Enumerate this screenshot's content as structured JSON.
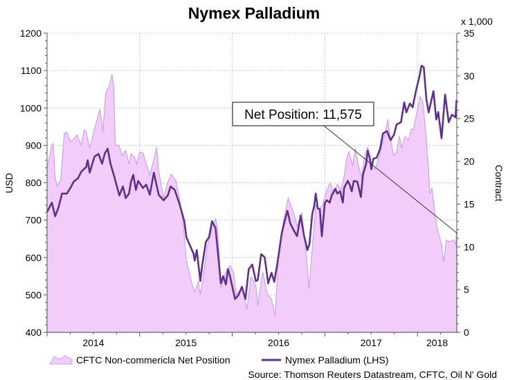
{
  "chart_data": {
    "type": "area+line",
    "title": "Nymex Palladium",
    "ylabel_left": "USD",
    "ylabel_right": "Contract",
    "right_axis_unit": "x 1,000",
    "ylim_left": [
      400,
      1200
    ],
    "ylim_right": [
      0,
      35
    ],
    "left_ticks": [
      "400",
      "500",
      "600",
      "700",
      "800",
      "900",
      "1000",
      "1100",
      "1200"
    ],
    "right_ticks": [
      "0",
      "5",
      "10",
      "15",
      "20",
      "25",
      "30",
      "35"
    ],
    "x_tick_labels": [
      "2014",
      "2015",
      "2016",
      "2017",
      "2018"
    ],
    "xlim": [
      "2014-01-01",
      "2018-06-05"
    ],
    "grid": true,
    "legend_position": "bottom",
    "annotation": "Net Position: 11,575",
    "source": "Source: Thomson Reuters Datastream, CFTC, Oil N' Gold",
    "colors": {
      "area_fill": "#f2cdf9",
      "area_edge": "#c9a2f2",
      "line": "#5e2f8f"
    },
    "series": [
      {
        "name": "CFTC Non-commericla Net Position",
        "type": "area",
        "axis": "right",
        "points": [
          [
            "2014-01-01",
            19.2
          ],
          [
            "2014-01-20",
            21.9
          ],
          [
            "2014-01-25",
            22.1
          ],
          [
            "2014-02-02",
            18.1
          ],
          [
            "2014-02-10",
            17.1
          ],
          [
            "2014-02-24",
            17.9
          ],
          [
            "2014-03-10",
            23.3
          ],
          [
            "2014-03-20",
            23.4
          ],
          [
            "2014-04-03",
            22.3
          ],
          [
            "2014-04-16",
            22.6
          ],
          [
            "2014-04-30",
            23.1
          ],
          [
            "2014-05-14",
            21.9
          ],
          [
            "2014-05-28",
            23.7
          ],
          [
            "2014-06-04",
            23.5
          ],
          [
            "2014-06-18",
            21.5
          ],
          [
            "2014-07-07",
            23.8
          ],
          [
            "2014-07-29",
            26.1
          ],
          [
            "2014-08-09",
            23.5
          ],
          [
            "2014-08-20",
            28.0
          ],
          [
            "2014-09-03",
            28.8
          ],
          [
            "2014-09-14",
            30.2
          ],
          [
            "2014-09-21",
            28.6
          ],
          [
            "2014-09-27",
            21.9
          ],
          [
            "2014-10-11",
            21.9
          ],
          [
            "2014-10-25",
            20.7
          ],
          [
            "2014-11-07",
            21.3
          ],
          [
            "2014-11-20",
            19.7
          ],
          [
            "2014-11-28",
            20.9
          ],
          [
            "2014-12-12",
            20.5
          ],
          [
            "2014-12-20",
            19.7
          ],
          [
            "2015-01-01",
            21.1
          ],
          [
            "2015-01-14",
            21.0
          ],
          [
            "2015-02-10",
            18.4
          ],
          [
            "2015-02-24",
            20.0
          ],
          [
            "2015-03-09",
            21.7
          ],
          [
            "2015-03-17",
            18.9
          ],
          [
            "2015-04-05",
            15.7
          ],
          [
            "2015-04-19",
            17.3
          ],
          [
            "2015-05-05",
            18.5
          ],
          [
            "2015-05-24",
            17.7
          ],
          [
            "2015-06-07",
            15.7
          ],
          [
            "2015-06-21",
            12.8
          ],
          [
            "2015-07-04",
            8.4
          ],
          [
            "2015-07-26",
            5.7
          ],
          [
            "2015-08-06",
            4.7
          ],
          [
            "2015-08-20",
            6.0
          ],
          [
            "2015-08-28",
            4.4
          ],
          [
            "2015-09-05",
            5.7
          ],
          [
            "2015-09-24",
            10.0
          ],
          [
            "2015-10-13",
            12.2
          ],
          [
            "2015-10-27",
            13.3
          ],
          [
            "2015-11-04",
            12.2
          ],
          [
            "2015-11-09",
            10.0
          ],
          [
            "2015-11-17",
            5.2
          ],
          [
            "2015-12-07",
            7.1
          ],
          [
            "2015-12-23",
            7.8
          ],
          [
            "2016-01-06",
            7.0
          ],
          [
            "2016-01-17",
            4.4
          ],
          [
            "2016-02-08",
            5.2
          ],
          [
            "2016-02-28",
            2.7
          ],
          [
            "2016-03-15",
            6.5
          ],
          [
            "2016-04-03",
            5.5
          ],
          [
            "2016-04-11",
            3.1
          ],
          [
            "2016-04-30",
            7.1
          ],
          [
            "2016-05-19",
            4.4
          ],
          [
            "2016-06-04",
            3.9
          ],
          [
            "2016-06-18",
            1.9
          ],
          [
            "2016-07-02",
            9.0
          ],
          [
            "2016-07-21",
            13.0
          ],
          [
            "2016-08-09",
            15.7
          ],
          [
            "2016-08-23",
            14.6
          ],
          [
            "2016-09-06",
            13.3
          ],
          [
            "2016-09-13",
            12.4
          ],
          [
            "2016-10-02",
            14.0
          ],
          [
            "2016-10-16",
            10.3
          ],
          [
            "2016-10-30",
            5.1
          ],
          [
            "2016-11-12",
            9.8
          ],
          [
            "2016-11-26",
            14.9
          ],
          [
            "2016-12-10",
            14.4
          ],
          [
            "2016-12-23",
            14.9
          ],
          [
            "2017-01-06",
            16.4
          ],
          [
            "2017-01-22",
            17.5
          ],
          [
            "2017-02-05",
            16.2
          ],
          [
            "2017-02-19",
            17.3
          ],
          [
            "2017-03-05",
            16.7
          ],
          [
            "2017-03-16",
            17.9
          ],
          [
            "2017-03-29",
            20.5
          ],
          [
            "2017-04-06",
            21.1
          ],
          [
            "2017-04-20",
            19.5
          ],
          [
            "2017-05-01",
            21.5
          ],
          [
            "2017-05-12",
            19.7
          ],
          [
            "2017-05-26",
            18.1
          ],
          [
            "2017-06-06",
            20.5
          ],
          [
            "2017-06-19",
            21.7
          ],
          [
            "2017-07-03",
            19.5
          ],
          [
            "2017-07-19",
            19.1
          ],
          [
            "2017-08-07",
            21.1
          ],
          [
            "2017-08-24",
            23.0
          ],
          [
            "2017-09-06",
            24.9
          ],
          [
            "2017-09-14",
            23.3
          ],
          [
            "2017-09-28",
            20.7
          ],
          [
            "2017-10-11",
            21.1
          ],
          [
            "2017-10-22",
            23.0
          ],
          [
            "2017-10-30",
            21.5
          ],
          [
            "2017-11-13",
            22.9
          ],
          [
            "2017-11-27",
            22.5
          ],
          [
            "2017-12-08",
            23.8
          ],
          [
            "2017-12-16",
            23.7
          ],
          [
            "2017-12-30",
            25.7
          ],
          [
            "2018-01-11",
            27.6
          ],
          [
            "2018-01-22",
            27.0
          ],
          [
            "2018-02-05",
            22.7
          ],
          [
            "2018-02-14",
            18.9
          ],
          [
            "2018-02-19",
            16.2
          ],
          [
            "2018-02-27",
            16.9
          ],
          [
            "2018-03-10",
            14.1
          ],
          [
            "2018-03-18",
            12.4
          ],
          [
            "2018-04-06",
            10.3
          ],
          [
            "2018-04-14",
            8.2
          ],
          [
            "2018-04-25",
            10.8
          ],
          [
            "2018-05-09",
            10.6
          ],
          [
            "2018-05-22",
            10.8
          ],
          [
            "2018-05-31",
            10.3
          ],
          [
            "2018-06-04",
            11.6
          ]
        ]
      },
      {
        "name": "Nymex Palladium (LHS)",
        "type": "line",
        "axis": "left",
        "points": [
          [
            "2014-01-01",
            722
          ],
          [
            "2014-01-20",
            747
          ],
          [
            "2014-02-02",
            710
          ],
          [
            "2014-02-15",
            734
          ],
          [
            "2014-03-01",
            771
          ],
          [
            "2014-03-20",
            771
          ],
          [
            "2014-04-03",
            786
          ],
          [
            "2014-04-16",
            803
          ],
          [
            "2014-05-03",
            812
          ],
          [
            "2014-05-16",
            830
          ],
          [
            "2014-06-04",
            842
          ],
          [
            "2014-06-10",
            860
          ],
          [
            "2014-06-18",
            827
          ],
          [
            "2014-07-07",
            870
          ],
          [
            "2014-07-23",
            877
          ],
          [
            "2014-08-06",
            851
          ],
          [
            "2014-08-17",
            879
          ],
          [
            "2014-08-28",
            891
          ],
          [
            "2014-09-08",
            851
          ],
          [
            "2014-09-21",
            821
          ],
          [
            "2014-10-05",
            786
          ],
          [
            "2014-10-13",
            766
          ],
          [
            "2014-10-27",
            790
          ],
          [
            "2014-11-07",
            759
          ],
          [
            "2014-11-20",
            771
          ],
          [
            "2014-11-28",
            803
          ],
          [
            "2014-12-07",
            821
          ],
          [
            "2014-12-17",
            781
          ],
          [
            "2014-12-26",
            805
          ],
          [
            "2015-01-14",
            786
          ],
          [
            "2015-01-27",
            795
          ],
          [
            "2015-02-10",
            768
          ],
          [
            "2015-02-26",
            827
          ],
          [
            "2015-03-17",
            768
          ],
          [
            "2015-04-05",
            753
          ],
          [
            "2015-04-22",
            766
          ],
          [
            "2015-05-03",
            790
          ],
          [
            "2015-05-19",
            781
          ],
          [
            "2015-06-07",
            744
          ],
          [
            "2015-06-26",
            697
          ],
          [
            "2015-07-04",
            655
          ],
          [
            "2015-08-01",
            611
          ],
          [
            "2015-08-06",
            592
          ],
          [
            "2015-08-14",
            620
          ],
          [
            "2015-08-28",
            537
          ],
          [
            "2015-09-05",
            581
          ],
          [
            "2015-09-19",
            642
          ],
          [
            "2015-10-02",
            655
          ],
          [
            "2015-10-13",
            697
          ],
          [
            "2015-10-27",
            679
          ],
          [
            "2015-11-09",
            587
          ],
          [
            "2015-11-17",
            531
          ],
          [
            "2015-11-26",
            550
          ],
          [
            "2015-12-07",
            528
          ],
          [
            "2015-12-15",
            569
          ],
          [
            "2015-12-23",
            550
          ],
          [
            "2016-01-12",
            489
          ],
          [
            "2016-01-26",
            500
          ],
          [
            "2016-02-08",
            522
          ],
          [
            "2016-02-22",
            489
          ],
          [
            "2016-03-06",
            569
          ],
          [
            "2016-03-20",
            581
          ],
          [
            "2016-04-03",
            537
          ],
          [
            "2016-04-11",
            540
          ],
          [
            "2016-04-24",
            609
          ],
          [
            "2016-05-08",
            601
          ],
          [
            "2016-05-22",
            531
          ],
          [
            "2016-06-04",
            559
          ],
          [
            "2016-06-15",
            535
          ],
          [
            "2016-06-29",
            592
          ],
          [
            "2016-07-15",
            666
          ],
          [
            "2016-07-26",
            697
          ],
          [
            "2016-08-06",
            725
          ],
          [
            "2016-08-17",
            692
          ],
          [
            "2016-08-30",
            674
          ],
          [
            "2016-09-13",
            657
          ],
          [
            "2016-09-27",
            712
          ],
          [
            "2016-10-10",
            661
          ],
          [
            "2016-10-24",
            620
          ],
          [
            "2016-11-01",
            636
          ],
          [
            "2016-11-12",
            716
          ],
          [
            "2016-11-20",
            738
          ],
          [
            "2016-11-26",
            771
          ],
          [
            "2016-12-04",
            731
          ],
          [
            "2016-12-12",
            729
          ],
          [
            "2016-12-20",
            657
          ],
          [
            "2017-01-01",
            747
          ],
          [
            "2017-01-09",
            753
          ],
          [
            "2017-01-20",
            747
          ],
          [
            "2017-01-28",
            766
          ],
          [
            "2017-02-11",
            784
          ],
          [
            "2017-02-19",
            771
          ],
          [
            "2017-03-02",
            777
          ],
          [
            "2017-03-13",
            747
          ],
          [
            "2017-03-18",
            786
          ],
          [
            "2017-04-01",
            805
          ],
          [
            "2017-04-09",
            795
          ],
          [
            "2017-04-17",
            777
          ],
          [
            "2017-04-25",
            805
          ],
          [
            "2017-05-09",
            803
          ],
          [
            "2017-05-23",
            762
          ],
          [
            "2017-05-31",
            821
          ],
          [
            "2017-06-13",
            851
          ],
          [
            "2017-06-19",
            886
          ],
          [
            "2017-06-27",
            867
          ],
          [
            "2017-07-03",
            836
          ],
          [
            "2017-07-11",
            864
          ],
          [
            "2017-07-24",
            867
          ],
          [
            "2017-08-07",
            891
          ],
          [
            "2017-08-18",
            932
          ],
          [
            "2017-09-03",
            938
          ],
          [
            "2017-09-17",
            914
          ],
          [
            "2017-09-30",
            928
          ],
          [
            "2017-10-11",
            956
          ],
          [
            "2017-10-28",
            962
          ],
          [
            "2017-11-10",
            1015
          ],
          [
            "2017-11-18",
            988
          ],
          [
            "2017-12-02",
            1012
          ],
          [
            "2017-12-13",
            1002
          ],
          [
            "2017-12-27",
            1048
          ],
          [
            "2018-01-09",
            1085
          ],
          [
            "2018-01-17",
            1113
          ],
          [
            "2018-01-26",
            1109
          ],
          [
            "2018-02-05",
            1025
          ],
          [
            "2018-02-14",
            988
          ],
          [
            "2018-03-05",
            1045
          ],
          [
            "2018-03-16",
            969
          ],
          [
            "2018-03-24",
            989
          ],
          [
            "2018-04-06",
            919
          ],
          [
            "2018-04-20",
            1036
          ],
          [
            "2018-05-04",
            962
          ],
          [
            "2018-05-17",
            982
          ],
          [
            "2018-05-31",
            975
          ],
          [
            "2018-06-04",
            1021
          ]
        ]
      }
    ]
  }
}
